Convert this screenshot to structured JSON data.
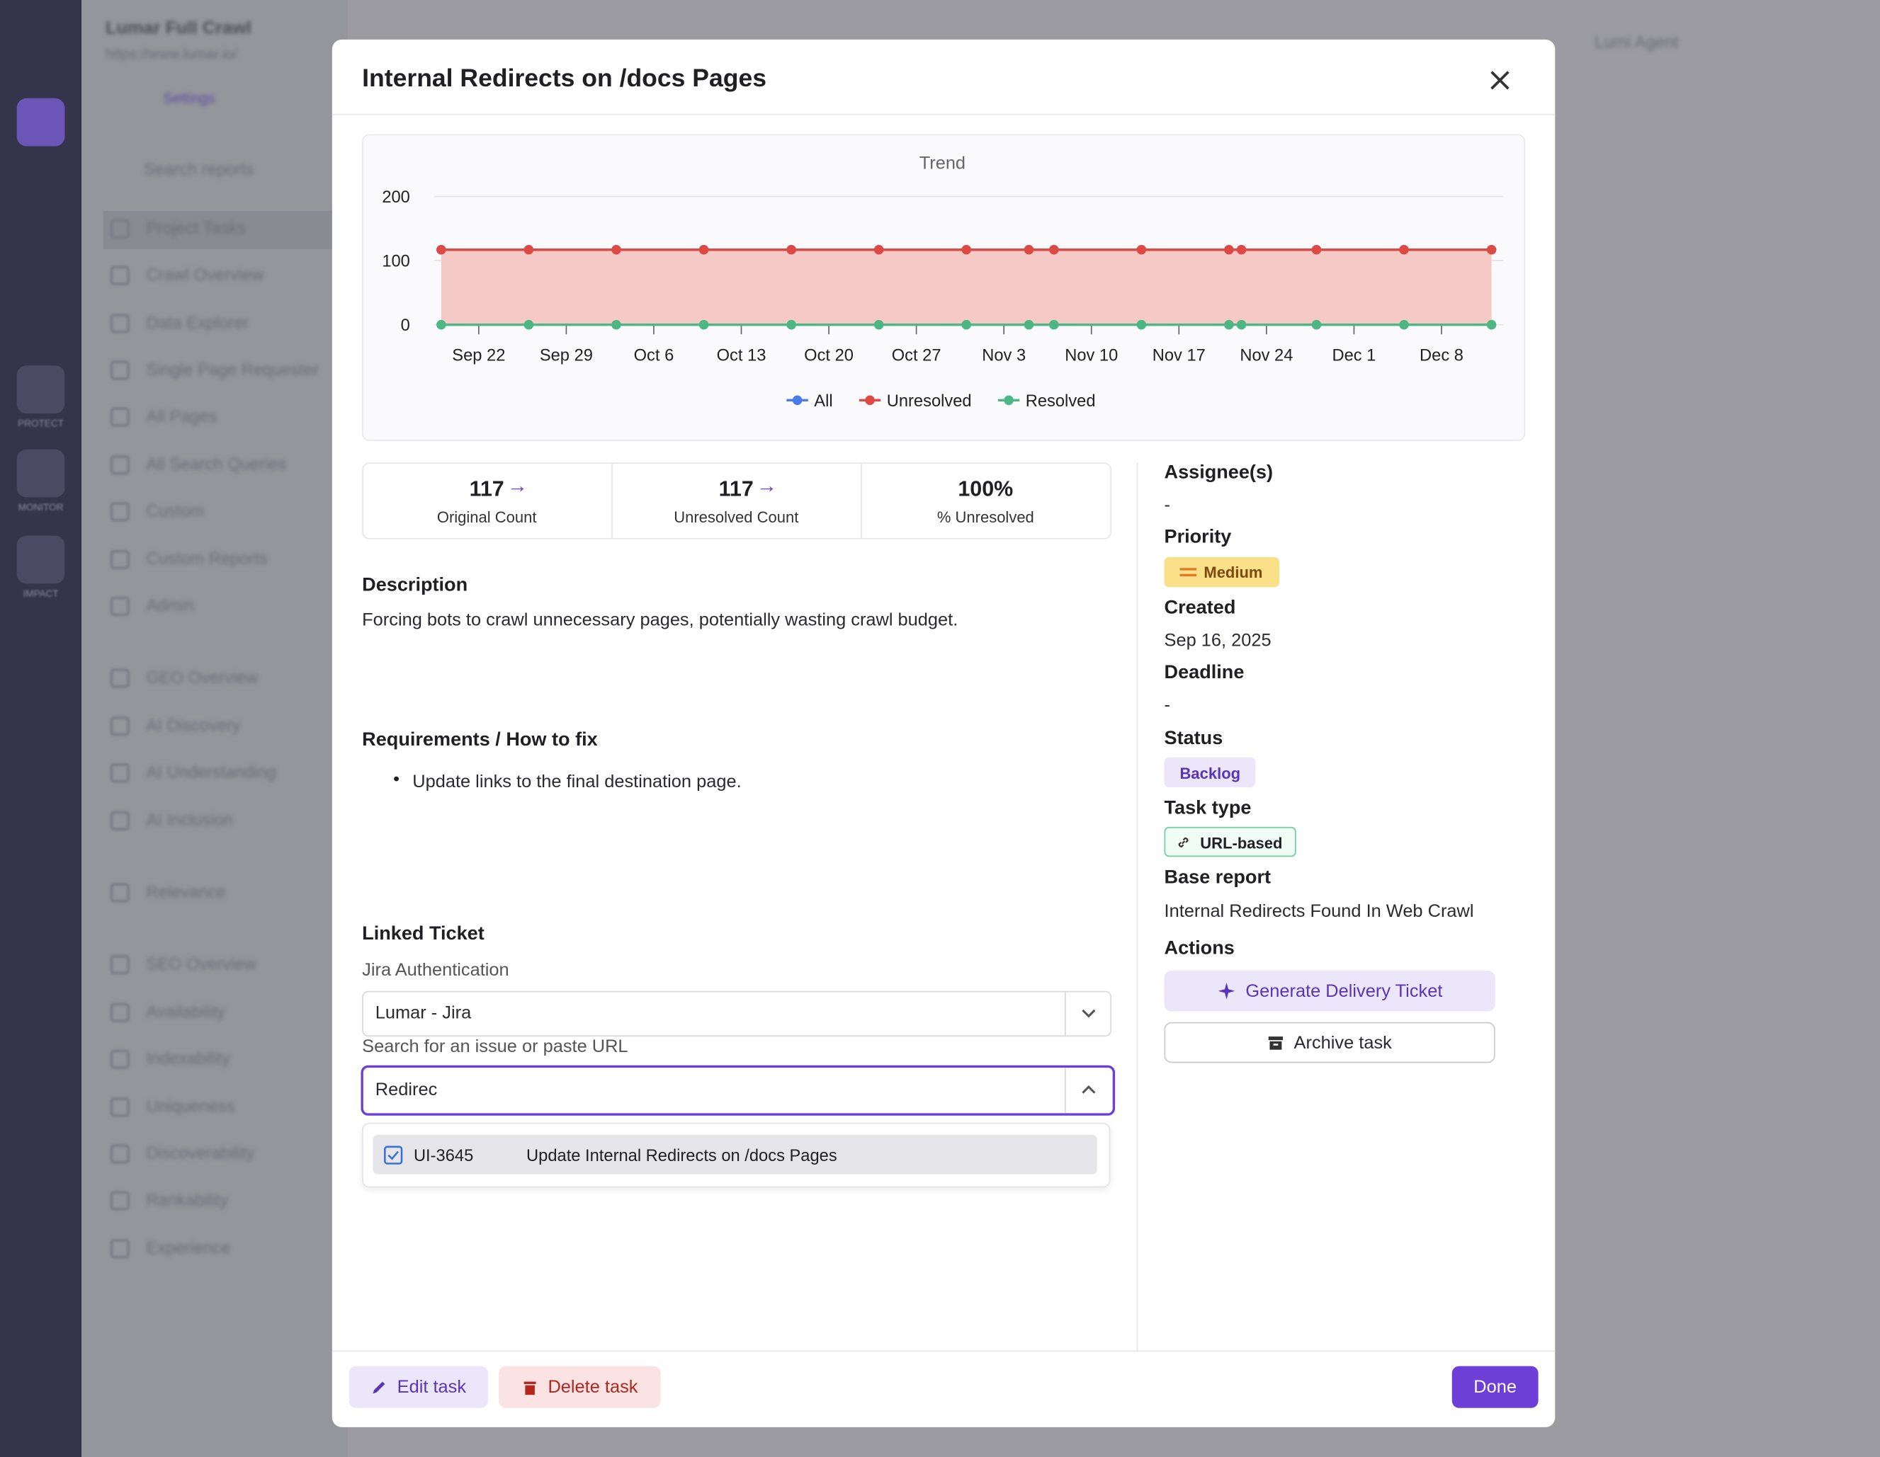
{
  "app": {
    "project": "Lumar Full Crawl",
    "url": "https://www.lumar.io/",
    "tab": "Settings",
    "search_placeholder": "Search reports",
    "agent": "Lumi Agent",
    "rail": [
      "PROTECT",
      "MONITOR",
      "IMPACT"
    ],
    "nav": [
      "Project Tasks",
      "Crawl Overview",
      "Data Explorer",
      "Single Page Requester",
      "All Pages",
      "All Search Queries",
      "Custom",
      "Custom Reports",
      "Admin",
      "GEO Overview",
      "AI Discovery",
      "AI Understanding",
      "AI Inclusion",
      "Relevance",
      "SEO Overview",
      "Availability",
      "Indexability",
      "Uniqueness",
      "Discoverability",
      "Rankability",
      "Experience"
    ]
  },
  "modal": {
    "title": "Internal Redirects on /docs Pages",
    "trend_chart": {
      "type": "line",
      "title": "Trend",
      "x": [
        "Sep 19",
        "Sep 26",
        "Oct 3",
        "Oct 10",
        "Oct 17",
        "Oct 24",
        "Oct 31",
        "Nov 5",
        "Nov 7",
        "Nov 14",
        "Nov 21",
        "Nov 22",
        "Nov 28",
        "Dec 5",
        "Dec 12"
      ],
      "xlim": [
        "Sep 19",
        "Dec 12"
      ],
      "xticks": [
        "Sep 22",
        "Sep 29",
        "Oct 6",
        "Oct 13",
        "Oct 20",
        "Oct 27",
        "Nov 3",
        "Nov 10",
        "Nov 17",
        "Nov 24",
        "Dec 1",
        "Dec 8"
      ],
      "ylim": [
        0,
        200
      ],
      "yticks": [
        0,
        100,
        200
      ],
      "grid": true,
      "series": [
        {
          "name": "All",
          "color": "#4a7be8",
          "values": [
            117,
            117,
            117,
            117,
            117,
            117,
            117,
            117,
            117,
            117,
            117,
            117,
            117,
            117,
            117
          ]
        },
        {
          "name": "Unresolved",
          "color": "#dc4a43",
          "fill": "#f5c9c6",
          "values": [
            117,
            117,
            117,
            117,
            117,
            117,
            117,
            117,
            117,
            117,
            117,
            117,
            117,
            117,
            117
          ]
        },
        {
          "name": "Resolved",
          "color": "#4cb784",
          "values": [
            0,
            0,
            0,
            0,
            0,
            0,
            0,
            0,
            0,
            0,
            0,
            0,
            0,
            0,
            0
          ]
        }
      ]
    },
    "stats": [
      {
        "value": 117,
        "label": "Original Count"
      },
      {
        "value": 117,
        "label": "Unresolved Count"
      },
      {
        "value": "100%",
        "label": "% Unresolved"
      }
    ],
    "description": {
      "heading": "Description",
      "text": "Forcing bots to crawl unnecessary pages, potentially wasting crawl budget."
    },
    "requirements": {
      "heading": "Requirements / How to fix",
      "items": [
        "Update links to the final destination page."
      ]
    },
    "linked_ticket": {
      "heading": "Linked Ticket",
      "auth_label": "Jira Authentication",
      "auth_value": "Lumar - Jira",
      "search_label": "Search for an issue or paste URL",
      "search_value": "Redirec",
      "option": {
        "key": "UI-3645",
        "summary": "Update Internal Redirects on /docs Pages"
      }
    },
    "details": {
      "assignee_label": "Assignee(s)",
      "assignee": "-",
      "priority_label": "Priority",
      "priority": "Medium",
      "created_label": "Created",
      "created": "Sep 16, 2025",
      "deadline_label": "Deadline",
      "deadline": "-",
      "status_label": "Status",
      "status": "Backlog",
      "type_label": "Task type",
      "type": "URL-based",
      "base_label": "Base report",
      "base": "Internal Redirects Found In Web Crawl",
      "actions_label": "Actions",
      "generate": "Generate Delivery Ticket",
      "archive": "Archive task"
    },
    "footer": {
      "edit": "Edit task",
      "delete": "Delete task",
      "done": "Done"
    }
  }
}
